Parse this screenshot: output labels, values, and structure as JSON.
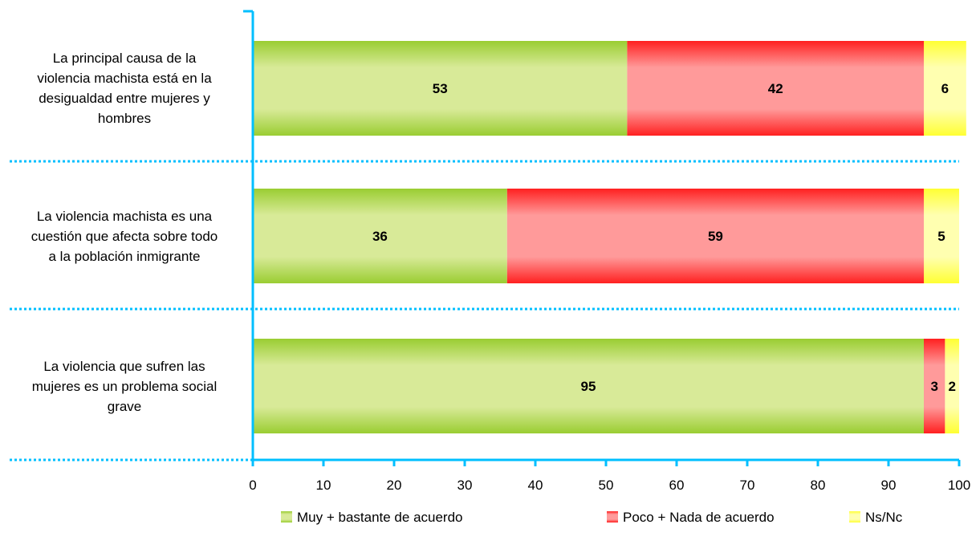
{
  "chart_data": {
    "type": "bar",
    "orientation": "horizontal",
    "stacked": true,
    "categories": [
      "La principal causa de la violencia machista está en la desigualdad entre mujeres y hombres",
      "La violencia machista es una cuestión que afecta sobre todo a la población inmigrante",
      "La violencia que sufren las mujeres es un problema social grave"
    ],
    "series": [
      {
        "name": "Muy + bastante de acuerdo",
        "values": [
          53,
          36,
          95
        ],
        "color": "#9acd32"
      },
      {
        "name": "Poco + Nada de acuerdo",
        "values": [
          42,
          59,
          3
        ],
        "color": "#ff2020"
      },
      {
        "name": "Ns/Nc",
        "values": [
          6,
          5,
          2
        ],
        "color": "#ffff33"
      }
    ],
    "xlim": [
      0,
      100
    ],
    "xticks": [
      0,
      10,
      20,
      30,
      40,
      50,
      60,
      70,
      80,
      90,
      100
    ],
    "title": "",
    "xlabel": "",
    "ylabel": "",
    "grid": false,
    "legend_position": "bottom",
    "axis_color": "#00bfff"
  }
}
